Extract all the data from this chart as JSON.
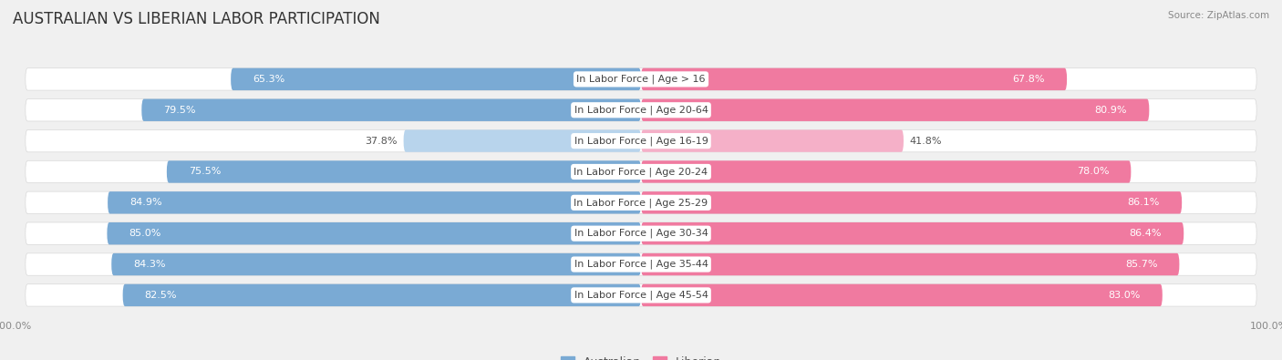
{
  "title": "AUSTRALIAN VS LIBERIAN LABOR PARTICIPATION",
  "source": "Source: ZipAtlas.com",
  "categories": [
    "In Labor Force | Age > 16",
    "In Labor Force | Age 20-64",
    "In Labor Force | Age 16-19",
    "In Labor Force | Age 20-24",
    "In Labor Force | Age 25-29",
    "In Labor Force | Age 30-34",
    "In Labor Force | Age 35-44",
    "In Labor Force | Age 45-54"
  ],
  "australian": [
    65.3,
    79.5,
    37.8,
    75.5,
    84.9,
    85.0,
    84.3,
    82.5
  ],
  "liberian": [
    67.8,
    80.9,
    41.8,
    78.0,
    86.1,
    86.4,
    85.7,
    83.0
  ],
  "australian_color_dark": "#7aaad4",
  "australian_color_light": "#b8d4ec",
  "liberian_color_dark": "#f07aa0",
  "liberian_color_light": "#f5b0c8",
  "bar_height": 0.72,
  "bg_color": "#f0f0f0",
  "row_bg_light": "#f8f8f8",
  "row_bg_dark": "#e8e8e8",
  "pill_color": "#ffffff",
  "pill_edge": "#d8d8d8",
  "title_fontsize": 12,
  "label_fontsize": 8,
  "value_fontsize": 8,
  "legend_fontsize": 9,
  "axis_label_fontsize": 8
}
